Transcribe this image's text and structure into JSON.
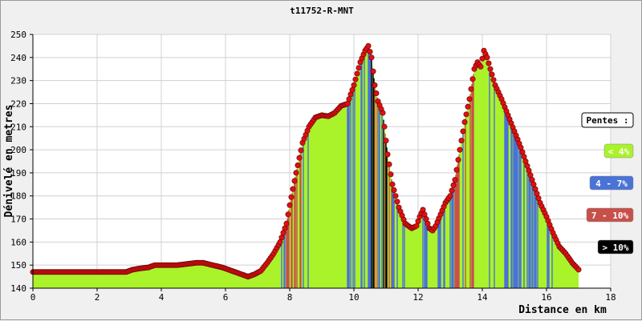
{
  "chart_data": {
    "type": "area",
    "title": "t11752-R-MNT",
    "xlabel": "Distance en km",
    "ylabel": "Dénivelé en metres",
    "xlim": [
      0,
      18
    ],
    "ylim": [
      140,
      250
    ],
    "x_ticks": [
      "0",
      "2",
      "4",
      "6",
      "8",
      "10",
      "12",
      "14",
      "16",
      "18"
    ],
    "y_ticks": [
      "140",
      "150",
      "160",
      "170",
      "180",
      "190",
      "200",
      "210",
      "220",
      "230",
      "240",
      "250"
    ],
    "grid": true,
    "legend": {
      "title": "Pentes :",
      "position": "right",
      "items": [
        {
          "label": "< 4%",
          "color": "#aaf22a",
          "text_color": "#ffffff"
        },
        {
          "label": "4 - 7%",
          "color": "#4a73d8",
          "text_color": "#ffffff"
        },
        {
          "label": "7 - 10%",
          "color": "#c8504a",
          "text_color": "#ffffff"
        },
        {
          "label": "> 10%",
          "color": "#000000",
          "text_color": "#ffffff"
        }
      ]
    },
    "colors": {
      "fill": "#aaf22a",
      "marker": "#e01010",
      "marker_edge": "#5a0000",
      "line": "#000000"
    },
    "series": [
      {
        "x": [
          0,
          0.5,
          1,
          1.5,
          2,
          2.5,
          2.9,
          3.1,
          3.3,
          3.6,
          3.8,
          4.0,
          4.2,
          4.5,
          4.8,
          5.1,
          5.3,
          5.6,
          5.9,
          6.1,
          6.3,
          6.5,
          6.7,
          6.9,
          7.1,
          7.3,
          7.5,
          7.7,
          7.9,
          8.0,
          8.2,
          8.4,
          8.6,
          8.8,
          9.0,
          9.2,
          9.4,
          9.6,
          9.8,
          10.0,
          10.2,
          10.35,
          10.45,
          10.55,
          10.65,
          10.75,
          10.9,
          11.05,
          11.2,
          11.4,
          11.6,
          11.8,
          11.95,
          12.05,
          12.15,
          12.25,
          12.35,
          12.45,
          12.55,
          12.7,
          12.85,
          13.0,
          13.15,
          13.3,
          13.45,
          13.6,
          13.75,
          13.85,
          13.95,
          14.05,
          14.15,
          14.25,
          14.4,
          14.6,
          14.8,
          15.0,
          15.2,
          15.4,
          15.6,
          15.8,
          16.0,
          16.2,
          16.4,
          16.6,
          16.8,
          17.0
        ],
        "y": [
          147,
          147,
          147,
          147,
          147,
          147,
          147,
          148,
          148.5,
          149,
          150,
          150,
          150,
          150,
          150.5,
          151,
          151,
          150,
          149,
          148,
          147,
          146,
          145,
          146,
          147.5,
          151,
          155,
          160,
          168,
          176,
          190,
          203,
          210,
          214,
          215,
          214.5,
          216,
          219,
          220,
          228,
          238,
          243,
          245,
          240,
          228,
          221,
          216,
          198,
          185,
          175,
          168,
          166,
          167,
          171,
          174,
          170,
          166,
          165,
          167,
          172,
          177,
          180,
          187,
          200,
          212,
          222,
          235,
          238,
          236,
          243,
          240,
          235,
          228,
          222,
          215,
          208,
          201,
          193,
          185,
          177,
          171,
          164,
          158,
          155,
          151,
          148
        ]
      }
    ]
  }
}
